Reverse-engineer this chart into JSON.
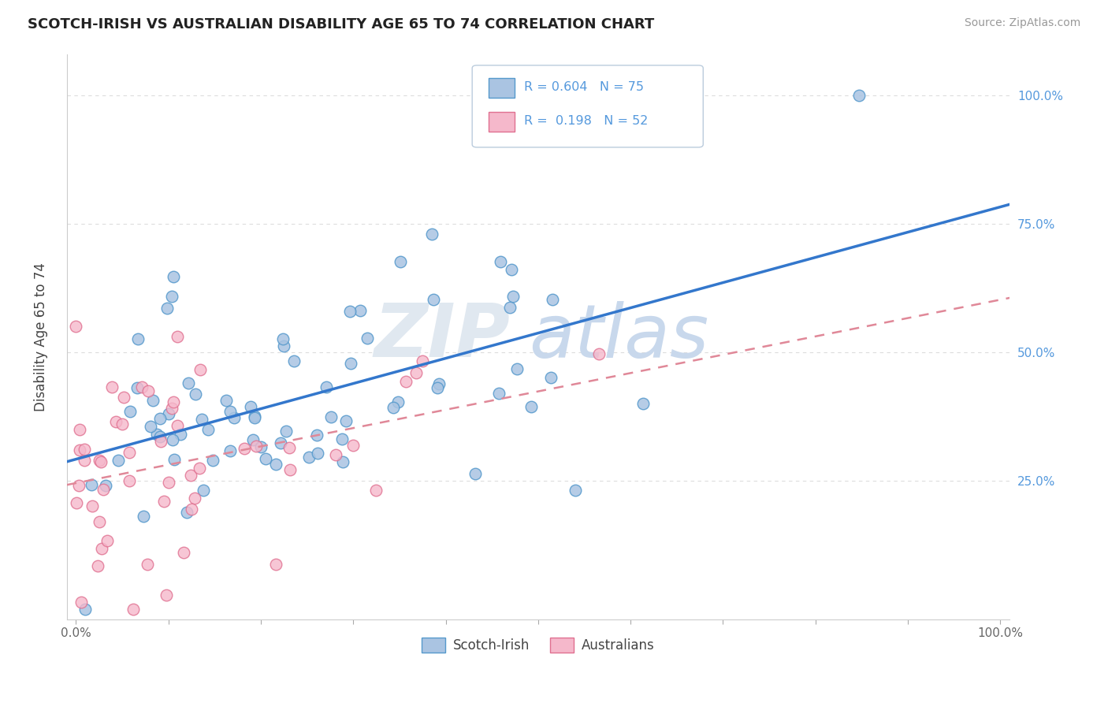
{
  "title": "SCOTCH-IRISH VS AUSTRALIAN DISABILITY AGE 65 TO 74 CORRELATION CHART",
  "source": "Source: ZipAtlas.com",
  "ylabel": "Disability Age 65 to 74",
  "r_scotch": 0.604,
  "n_scotch": 75,
  "r_australian": 0.198,
  "n_australian": 52,
  "legend_label_1": "Scotch-Irish",
  "legend_label_2": "Australians",
  "scotch_color": "#aac4e2",
  "scotch_edge_color": "#5599cc",
  "australian_color": "#f5b8cb",
  "australian_edge_color": "#e07090",
  "scotch_line_color": "#3377cc",
  "australian_line_color": "#e08898",
  "grid_color": "#dddddd",
  "ytick_color": "#5599dd",
  "xtick_color": "#666666",
  "watermark_zip_color": "#e0e8f0",
  "watermark_atlas_color": "#c8d8ec",
  "background": "#ffffff"
}
